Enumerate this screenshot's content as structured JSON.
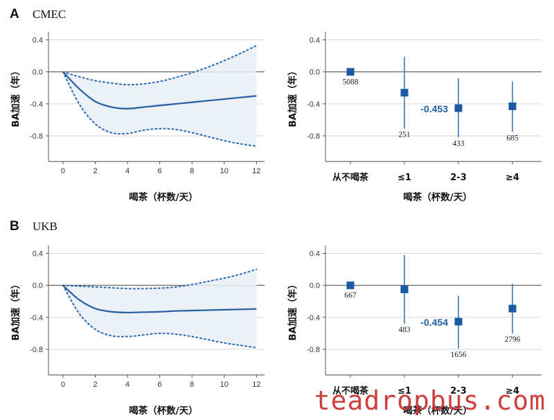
{
  "watermark": "teadropbus.com",
  "panels": [
    {
      "letter": "A",
      "cohort": "CMEC",
      "chart_data": [
        {
          "type": "line",
          "xlabel": "喝茶（杯数/天）",
          "ylabel": "BA加速（年）",
          "xlim": [
            -0.9,
            12.5
          ],
          "ylim": [
            -1.12,
            0.5
          ],
          "xticks": [
            "0",
            "2",
            "4",
            "6",
            "8",
            "10",
            "12"
          ],
          "yticks": [
            "0.4",
            "0.0",
            "-0.4",
            "-0.8"
          ],
          "grid": true,
          "series": [
            {
              "x": [
                0,
                1,
                2,
                3,
                4,
                5,
                6,
                7,
                8,
                9,
                10,
                11,
                12
              ],
              "values": [
                0.0,
                -0.21,
                -0.37,
                -0.44,
                -0.46,
                -0.44,
                -0.42,
                -0.4,
                -0.38,
                -0.36,
                -0.34,
                -0.32,
                -0.3
              ]
            },
            {
              "x": [
                0,
                1,
                2,
                3,
                4,
                5,
                6,
                7,
                8,
                9,
                10,
                11,
                12
              ],
              "values": [
                0.0,
                -0.06,
                -0.11,
                -0.14,
                -0.16,
                -0.15,
                -0.12,
                -0.07,
                -0.01,
                0.06,
                0.14,
                0.23,
                0.33
              ]
            },
            {
              "x": [
                0,
                1,
                2,
                3,
                4,
                5,
                6,
                7,
                8,
                9,
                10,
                11,
                12
              ],
              "values": [
                0.0,
                -0.4,
                -0.65,
                -0.76,
                -0.77,
                -0.73,
                -0.71,
                -0.72,
                -0.76,
                -0.81,
                -0.86,
                -0.9,
                -0.93
              ]
            }
          ]
        },
        {
          "type": "scatter",
          "xlabel": "喝茶（杯数/天）",
          "ylabel": "BA加速（年）",
          "categories": [
            "从不喝茶",
            "≤1",
            "2-3",
            "≥4"
          ],
          "values": [
            0.0,
            -0.26,
            -0.453,
            -0.43
          ],
          "ci_low": [
            0.0,
            -0.71,
            -0.82,
            -0.75
          ],
          "ci_high": [
            0.0,
            0.19,
            -0.08,
            -0.12
          ],
          "ylim": [
            -1.12,
            0.5
          ],
          "yticks": [
            "0.4",
            "0.0",
            "-0.4",
            "-0.8"
          ],
          "grid": true,
          "n_labels": [
            "5088",
            "251",
            "433",
            "685"
          ],
          "annotation": "-0.453"
        }
      ]
    },
    {
      "letter": "B",
      "cohort": "UKB",
      "chart_data": [
        {
          "type": "line",
          "xlabel": "喝茶（杯数/天）",
          "ylabel": "BA加速（年）",
          "xlim": [
            -0.9,
            12.5
          ],
          "ylim": [
            -1.12,
            0.5
          ],
          "xticks": [
            "0",
            "2",
            "4",
            "6",
            "8",
            "10",
            "12"
          ],
          "yticks": [
            "0.4",
            "0.0",
            "-0.4",
            "-0.8"
          ],
          "grid": true,
          "series": [
            {
              "x": [
                0,
                1,
                2,
                3,
                4,
                5,
                6,
                7,
                8,
                9,
                10,
                11,
                12
              ],
              "values": [
                0.0,
                -0.18,
                -0.29,
                -0.33,
                -0.34,
                -0.335,
                -0.33,
                -0.32,
                -0.315,
                -0.31,
                -0.305,
                -0.3,
                -0.295
              ]
            },
            {
              "x": [
                0,
                1,
                2,
                3,
                4,
                5,
                6,
                7,
                8,
                9,
                10,
                11,
                12
              ],
              "values": [
                0.0,
                -0.01,
                -0.02,
                -0.03,
                -0.04,
                -0.04,
                -0.035,
                -0.02,
                0.01,
                0.05,
                0.09,
                0.14,
                0.2
              ]
            },
            {
              "x": [
                0,
                1,
                2,
                3,
                4,
                5,
                6,
                7,
                8,
                9,
                10,
                11,
                12
              ],
              "values": [
                0.0,
                -0.35,
                -0.55,
                -0.63,
                -0.64,
                -0.62,
                -0.6,
                -0.61,
                -0.64,
                -0.68,
                -0.72,
                -0.75,
                -0.78
              ]
            }
          ]
        },
        {
          "type": "scatter",
          "xlabel": "喝茶（杯数/天）",
          "ylabel": "BA加速（年）",
          "categories": [
            "从不喝茶",
            "≤1",
            "2-3",
            "≥4"
          ],
          "values": [
            0.0,
            -0.05,
            -0.454,
            -0.29
          ],
          "ci_low": [
            0.0,
            -0.48,
            -0.79,
            -0.6
          ],
          "ci_high": [
            0.0,
            0.38,
            -0.13,
            0.02
          ],
          "ylim": [
            -1.12,
            0.5
          ],
          "yticks": [
            "0.4",
            "0.0",
            "-0.4",
            "-0.8"
          ],
          "grid": true,
          "n_labels": [
            "667",
            "483",
            "1656",
            "2796"
          ],
          "annotation": "-0.454"
        }
      ]
    }
  ]
}
